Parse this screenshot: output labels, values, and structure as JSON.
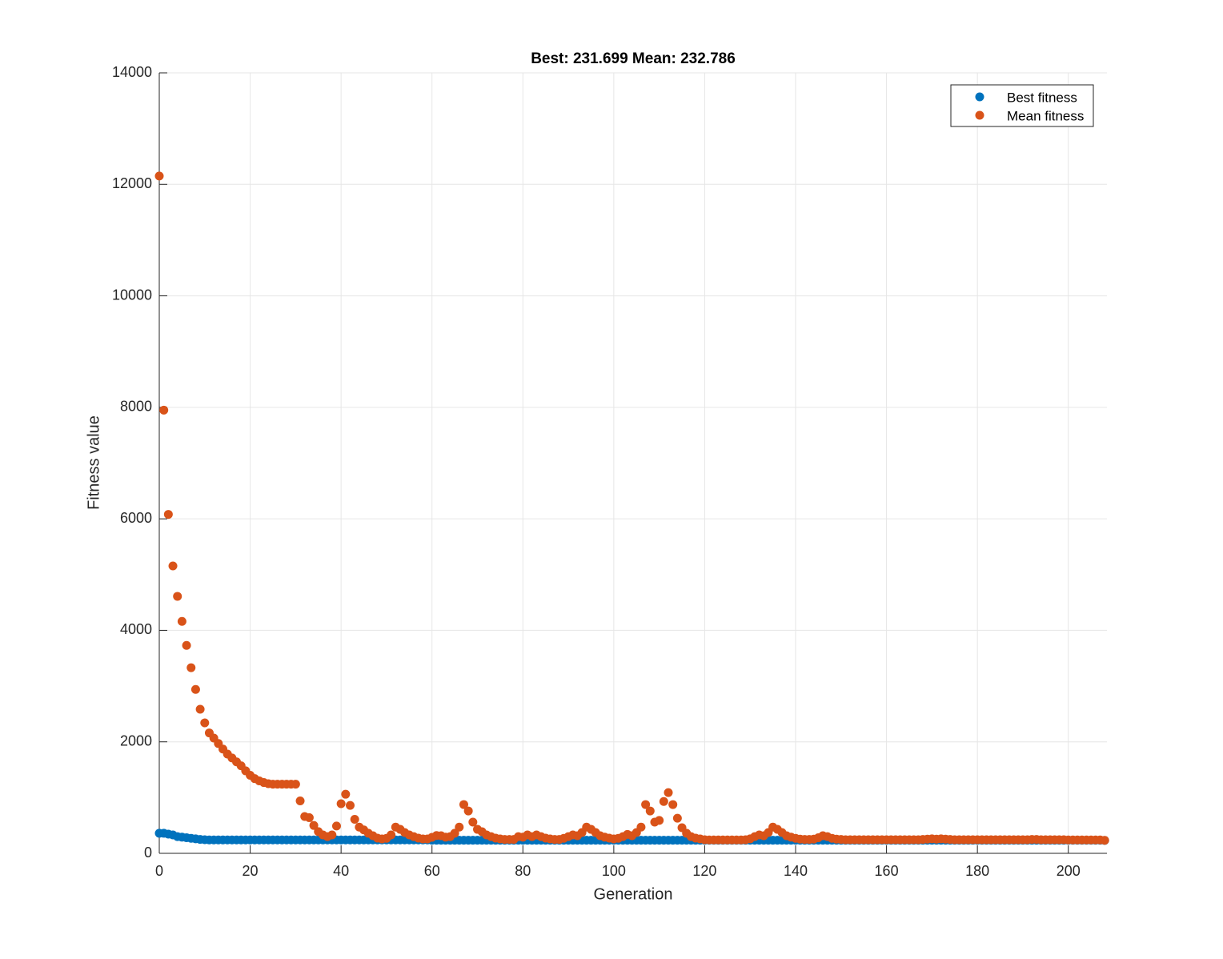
{
  "chart_data": {
    "type": "scatter",
    "title": "Best: 231.699 Mean: 232.786",
    "x_label": "Generation",
    "y_label": "Fitness value",
    "xlim": [
      0,
      208.5
    ],
    "ylim": [
      0,
      14000
    ],
    "xticks": [
      0,
      20,
      40,
      60,
      80,
      100,
      120,
      140,
      160,
      180,
      200
    ],
    "yticks": [
      0,
      2000,
      4000,
      6000,
      8000,
      10000,
      12000,
      14000
    ],
    "grid": true,
    "legend": "northeast",
    "x_start": 0,
    "series": [
      {
        "name": "Best fitness",
        "color": "#0072BD",
        "values": [
          360,
          360,
          345,
          330,
          300,
          290,
          280,
          270,
          260,
          250,
          245,
          240,
          240,
          240,
          240,
          240,
          240,
          240,
          240,
          240,
          240,
          240,
          240,
          240,
          240,
          240,
          240,
          240,
          240,
          240,
          240,
          240,
          240,
          240,
          240,
          240,
          240,
          240,
          240,
          240,
          240,
          240,
          240,
          240,
          240,
          240,
          240,
          240,
          240,
          240,
          240,
          240,
          240,
          240,
          240,
          240,
          240,
          240,
          240,
          240,
          235,
          235,
          235,
          235,
          235,
          235,
          235,
          235,
          235,
          235,
          235,
          235,
          235,
          235,
          235,
          235,
          235,
          235,
          235,
          235,
          235,
          235,
          235,
          235,
          235,
          235,
          235,
          235,
          235,
          235,
          235,
          235,
          235,
          235,
          235,
          235,
          235,
          235,
          235,
          235,
          235,
          235,
          235,
          235,
          235,
          235,
          235,
          235,
          235,
          235,
          235,
          235,
          235,
          235,
          235,
          235,
          235,
          235,
          235,
          235,
          235,
          235,
          235,
          235,
          235,
          235,
          235,
          235,
          235,
          235,
          235,
          235,
          235,
          235,
          235,
          235,
          235,
          235,
          235,
          235,
          235,
          235,
          235,
          235,
          235,
          235,
          235,
          235,
          235,
          235,
          235,
          235,
          235,
          235,
          235,
          235,
          235,
          235,
          235,
          235,
          235,
          235,
          235,
          235,
          235,
          235,
          235,
          235,
          235,
          235,
          235,
          235,
          235,
          235,
          235,
          235,
          235,
          235,
          235,
          235,
          235,
          235,
          235,
          235,
          235,
          235,
          235,
          235,
          235,
          235,
          235,
          235,
          235,
          235,
          235,
          235,
          235,
          235,
          235,
          235,
          235,
          235,
          235,
          235,
          235,
          235,
          235,
          235,
          231.699
        ]
      },
      {
        "name": "Mean fitness",
        "color": "#D95319",
        "values": [
          12150,
          7950,
          6080,
          5155,
          4610,
          4160,
          3730,
          3330,
          2940,
          2585,
          2340,
          2160,
          2068,
          1970,
          1870,
          1780,
          1710,
          1640,
          1570,
          1480,
          1400,
          1340,
          1300,
          1270,
          1250,
          1240,
          1240,
          1240,
          1240,
          1240,
          1240,
          940,
          660,
          640,
          500,
          390,
          330,
          300,
          330,
          490,
          890,
          1060,
          860,
          610,
          470,
          420,
          360,
          316,
          273,
          258,
          270,
          330,
          470,
          430,
          373,
          330,
          300,
          273,
          258,
          258,
          287,
          320,
          316,
          290,
          300,
          360,
          470,
          875,
          760,
          560,
          430,
          388,
          330,
          300,
          273,
          258,
          250,
          250,
          250,
          300,
          290,
          330,
          300,
          330,
          300,
          273,
          258,
          250,
          250,
          270,
          300,
          330,
          316,
          373,
          470,
          430,
          373,
          316,
          290,
          273,
          258,
          270,
          300,
          340,
          316,
          373,
          470,
          875,
          760,
          560,
          590,
          930,
          1090,
          875,
          630,
          460,
          360,
          300,
          273,
          258,
          245,
          240,
          240,
          240,
          240,
          240,
          240,
          240,
          240,
          245,
          260,
          300,
          330,
          316,
          373,
          470,
          430,
          373,
          316,
          290,
          270,
          255,
          250,
          250,
          255,
          280,
          316,
          300,
          270,
          255,
          250,
          245,
          245,
          245,
          245,
          245,
          245,
          245,
          245,
          245,
          245,
          245,
          245,
          245,
          245,
          245,
          245,
          245,
          250,
          255,
          260,
          255,
          260,
          255,
          250,
          245,
          245,
          245,
          245,
          245,
          245,
          245,
          245,
          245,
          245,
          245,
          245,
          245,
          245,
          245,
          245,
          245,
          250,
          250,
          245,
          245,
          245,
          245,
          245,
          245,
          240,
          240,
          240,
          240,
          240,
          240,
          240,
          240,
          232.786
        ]
      }
    ]
  }
}
